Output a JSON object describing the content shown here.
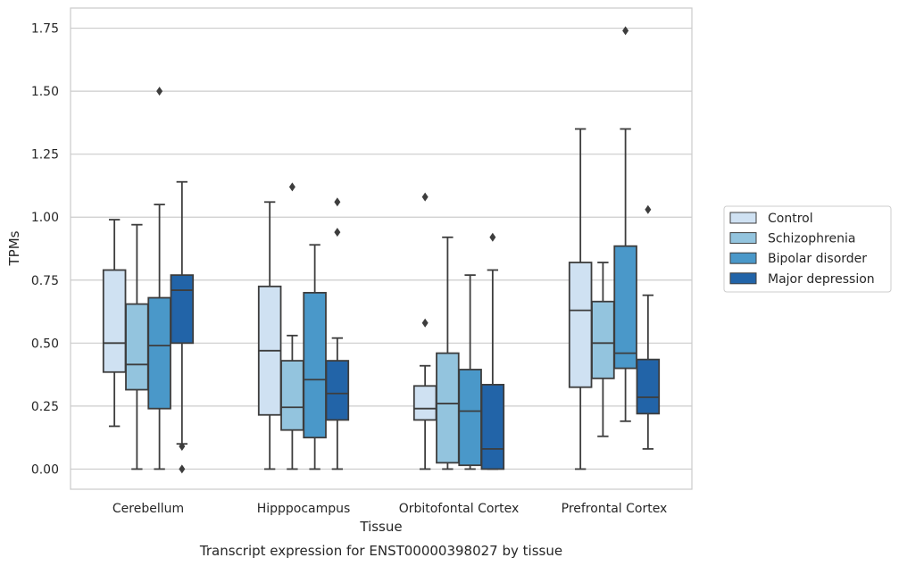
{
  "chart_data": {
    "type": "boxplot",
    "caption": "Transcript expression for ENST00000398027 by tissue",
    "xlabel": "Tissue",
    "ylabel": "TPMs",
    "ylim": [
      -0.08,
      1.83
    ],
    "yticks": [
      "0.00",
      "0.25",
      "0.50",
      "0.75",
      "1.00",
      "1.25",
      "1.50",
      "1.75"
    ],
    "ytick_values": [
      0,
      0.25,
      0.5,
      0.75,
      1.0,
      1.25,
      1.5,
      1.75
    ],
    "grid": true,
    "legend_position": "outside-right",
    "categories": [
      "Cerebellum",
      "Hipppocampus",
      "Orbitofontal Cortex",
      "Prefrontal Cortex"
    ],
    "series": [
      {
        "name": "Control",
        "color": "#cfe1f2",
        "boxes": [
          {
            "whislo": 0.17,
            "q1": 0.385,
            "med": 0.5,
            "q3": 0.79,
            "whishi": 0.99,
            "fliers": []
          },
          {
            "whislo": 0.0,
            "q1": 0.215,
            "med": 0.47,
            "q3": 0.725,
            "whishi": 1.06,
            "fliers": []
          },
          {
            "whislo": 0.0,
            "q1": 0.195,
            "med": 0.24,
            "q3": 0.33,
            "whishi": 0.41,
            "fliers": [
              0.58,
              1.08
            ]
          },
          {
            "whislo": 0.0,
            "q1": 0.325,
            "med": 0.63,
            "q3": 0.82,
            "whishi": 1.35,
            "fliers": []
          }
        ]
      },
      {
        "name": "Schizophrenia",
        "color": "#93c4de",
        "boxes": [
          {
            "whislo": 0.0,
            "q1": 0.315,
            "med": 0.415,
            "q3": 0.655,
            "whishi": 0.97,
            "fliers": []
          },
          {
            "whislo": 0.0,
            "q1": 0.155,
            "med": 0.245,
            "q3": 0.43,
            "whishi": 0.53,
            "fliers": [
              1.12
            ]
          },
          {
            "whislo": 0.0,
            "q1": 0.025,
            "med": 0.26,
            "q3": 0.46,
            "whishi": 0.92,
            "fliers": []
          },
          {
            "whislo": 0.13,
            "q1": 0.36,
            "med": 0.5,
            "q3": 0.665,
            "whishi": 0.82,
            "fliers": []
          }
        ]
      },
      {
        "name": "Bipolar disorder",
        "color": "#4a98c9",
        "boxes": [
          {
            "whislo": 0.0,
            "q1": 0.24,
            "med": 0.49,
            "q3": 0.68,
            "whishi": 1.05,
            "fliers": [
              1.5
            ]
          },
          {
            "whislo": 0.0,
            "q1": 0.125,
            "med": 0.355,
            "q3": 0.7,
            "whishi": 0.89,
            "fliers": []
          },
          {
            "whislo": 0.0,
            "q1": 0.015,
            "med": 0.23,
            "q3": 0.395,
            "whishi": 0.77,
            "fliers": []
          },
          {
            "whislo": 0.19,
            "q1": 0.4,
            "med": 0.46,
            "q3": 0.885,
            "whishi": 1.35,
            "fliers": [
              1.74
            ]
          }
        ]
      },
      {
        "name": "Major depression",
        "color": "#2264a8",
        "boxes": [
          {
            "whislo": 0.1,
            "q1": 0.5,
            "med": 0.71,
            "q3": 0.77,
            "whishi": 1.14,
            "fliers": [
              0.09,
              0.0
            ]
          },
          {
            "whislo": 0.0,
            "q1": 0.195,
            "med": 0.3,
            "q3": 0.43,
            "whishi": 0.52,
            "fliers": [
              0.94,
              1.06
            ]
          },
          {
            "whislo": 0.0,
            "q1": 0.0,
            "med": 0.08,
            "q3": 0.335,
            "whishi": 0.79,
            "fliers": [
              0.92
            ]
          },
          {
            "whislo": 0.08,
            "q1": 0.22,
            "med": 0.285,
            "q3": 0.435,
            "whishi": 0.69,
            "fliers": [
              1.03
            ]
          }
        ]
      }
    ]
  }
}
